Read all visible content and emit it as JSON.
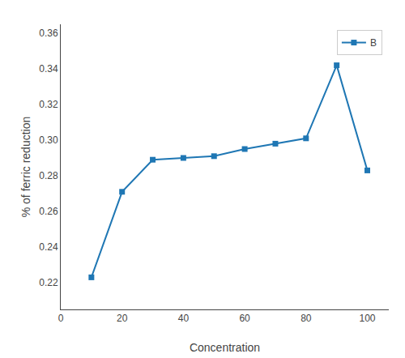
{
  "chart_data": {
    "type": "line",
    "x": [
      10,
      20,
      30,
      40,
      50,
      60,
      70,
      80,
      90,
      100
    ],
    "series": [
      {
        "name": "B",
        "marker": "square",
        "values": [
          0.223,
          0.271,
          0.289,
          0.29,
          0.291,
          0.295,
          0.298,
          0.301,
          0.342,
          0.283
        ]
      }
    ],
    "xlabel": "Concentration",
    "ylabel": "% of ferric reduction",
    "xlim": [
      0,
      107
    ],
    "ylim": [
      0.205,
      0.365
    ],
    "xticks": [
      0,
      20,
      40,
      60,
      80,
      100
    ],
    "yticks": [
      0.22,
      0.24,
      0.26,
      0.28,
      {
        "value": 0.3,
        "label": "0.30"
      },
      0.32,
      0.34,
      0.36
    ],
    "grid": false,
    "legend": "upper right"
  }
}
